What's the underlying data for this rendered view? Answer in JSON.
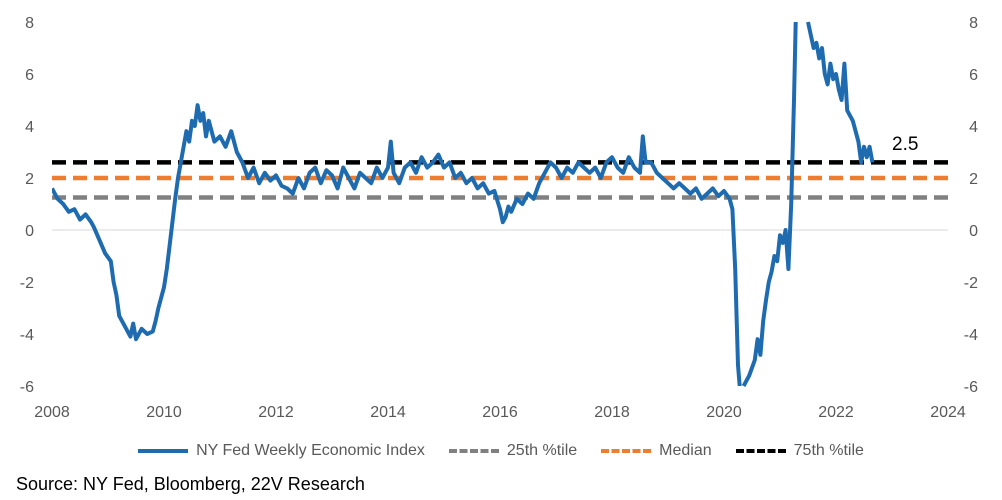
{
  "chart_data": {
    "type": "line",
    "title": "",
    "xlabel": "",
    "ylabel": "",
    "xlim": [
      2008,
      2024
    ],
    "ylim": [
      -6,
      8
    ],
    "x_ticks": [
      "2008",
      "2010",
      "2012",
      "2014",
      "2016",
      "2018",
      "2020",
      "2022",
      "2024"
    ],
    "y_ticks": [
      "-6",
      "-4",
      "-2",
      "0",
      "2",
      "4",
      "6",
      "8"
    ],
    "grid": false,
    "legend_position": "bottom",
    "annotation": "2.5",
    "series": [
      {
        "name": "NY Fed Weekly Economic Index",
        "color": "#1f6bb0",
        "style": "solid",
        "points": [
          [
            2008.0,
            1.6
          ],
          [
            2008.1,
            1.2
          ],
          [
            2008.2,
            1.0
          ],
          [
            2008.3,
            0.7
          ],
          [
            2008.4,
            0.8
          ],
          [
            2008.5,
            0.4
          ],
          [
            2008.6,
            0.6
          ],
          [
            2008.7,
            0.3
          ],
          [
            2008.75,
            0.1
          ],
          [
            2008.85,
            -0.4
          ],
          [
            2008.95,
            -0.9
          ],
          [
            2009.05,
            -1.2
          ],
          [
            2009.1,
            -2.0
          ],
          [
            2009.15,
            -2.5
          ],
          [
            2009.2,
            -3.3
          ],
          [
            2009.3,
            -3.7
          ],
          [
            2009.4,
            -4.1
          ],
          [
            2009.45,
            -3.6
          ],
          [
            2009.5,
            -4.2
          ],
          [
            2009.6,
            -3.8
          ],
          [
            2009.7,
            -4.0
          ],
          [
            2009.8,
            -3.9
          ],
          [
            2009.85,
            -3.5
          ],
          [
            2009.9,
            -3.0
          ],
          [
            2010.0,
            -2.2
          ],
          [
            2010.05,
            -1.5
          ],
          [
            2010.1,
            -0.6
          ],
          [
            2010.15,
            0.3
          ],
          [
            2010.2,
            1.2
          ],
          [
            2010.25,
            2.0
          ],
          [
            2010.3,
            2.6
          ],
          [
            2010.35,
            3.2
          ],
          [
            2010.4,
            3.8
          ],
          [
            2010.45,
            3.4
          ],
          [
            2010.5,
            4.2
          ],
          [
            2010.55,
            4.0
          ],
          [
            2010.6,
            4.8
          ],
          [
            2010.65,
            4.2
          ],
          [
            2010.7,
            4.5
          ],
          [
            2010.75,
            3.6
          ],
          [
            2010.8,
            4.2
          ],
          [
            2010.9,
            3.4
          ],
          [
            2011.0,
            3.6
          ],
          [
            2011.1,
            3.2
          ],
          [
            2011.2,
            3.8
          ],
          [
            2011.3,
            3.0
          ],
          [
            2011.4,
            2.6
          ],
          [
            2011.5,
            2.0
          ],
          [
            2011.6,
            2.4
          ],
          [
            2011.7,
            1.8
          ],
          [
            2011.8,
            2.2
          ],
          [
            2011.9,
            1.9
          ],
          [
            2012.0,
            2.1
          ],
          [
            2012.1,
            1.7
          ],
          [
            2012.2,
            1.6
          ],
          [
            2012.3,
            1.4
          ],
          [
            2012.4,
            2.0
          ],
          [
            2012.5,
            1.6
          ],
          [
            2012.6,
            2.2
          ],
          [
            2012.7,
            2.4
          ],
          [
            2012.8,
            1.8
          ],
          [
            2012.9,
            2.3
          ],
          [
            2013.0,
            2.1
          ],
          [
            2013.1,
            1.6
          ],
          [
            2013.2,
            2.4
          ],
          [
            2013.3,
            2.0
          ],
          [
            2013.4,
            1.6
          ],
          [
            2013.5,
            2.2
          ],
          [
            2013.6,
            2.0
          ],
          [
            2013.7,
            1.8
          ],
          [
            2013.8,
            2.4
          ],
          [
            2013.9,
            2.0
          ],
          [
            2014.0,
            2.4
          ],
          [
            2014.05,
            3.4
          ],
          [
            2014.1,
            2.2
          ],
          [
            2014.2,
            1.8
          ],
          [
            2014.3,
            2.4
          ],
          [
            2014.4,
            2.6
          ],
          [
            2014.5,
            2.2
          ],
          [
            2014.6,
            2.8
          ],
          [
            2014.7,
            2.4
          ],
          [
            2014.8,
            2.6
          ],
          [
            2014.9,
            2.9
          ],
          [
            2015.0,
            2.4
          ],
          [
            2015.1,
            2.6
          ],
          [
            2015.2,
            2.0
          ],
          [
            2015.3,
            2.2
          ],
          [
            2015.4,
            1.8
          ],
          [
            2015.5,
            2.0
          ],
          [
            2015.6,
            1.6
          ],
          [
            2015.7,
            1.8
          ],
          [
            2015.8,
            1.4
          ],
          [
            2015.9,
            1.5
          ],
          [
            2016.0,
            0.8
          ],
          [
            2016.05,
            0.3
          ],
          [
            2016.1,
            0.5
          ],
          [
            2016.15,
            0.9
          ],
          [
            2016.2,
            0.7
          ],
          [
            2016.3,
            1.2
          ],
          [
            2016.4,
            1.0
          ],
          [
            2016.5,
            1.4
          ],
          [
            2016.6,
            1.2
          ],
          [
            2016.7,
            1.8
          ],
          [
            2016.8,
            2.2
          ],
          [
            2016.9,
            2.6
          ],
          [
            2017.0,
            2.4
          ],
          [
            2017.1,
            2.0
          ],
          [
            2017.2,
            2.4
          ],
          [
            2017.3,
            2.2
          ],
          [
            2017.4,
            2.6
          ],
          [
            2017.5,
            2.4
          ],
          [
            2017.6,
            2.2
          ],
          [
            2017.7,
            2.4
          ],
          [
            2017.8,
            2.0
          ],
          [
            2017.9,
            2.6
          ],
          [
            2018.0,
            2.8
          ],
          [
            2018.1,
            2.4
          ],
          [
            2018.2,
            2.2
          ],
          [
            2018.3,
            2.8
          ],
          [
            2018.4,
            2.4
          ],
          [
            2018.5,
            2.2
          ],
          [
            2018.55,
            3.6
          ],
          [
            2018.6,
            2.6
          ],
          [
            2018.7,
            2.6
          ],
          [
            2018.8,
            2.2
          ],
          [
            2018.9,
            2.0
          ],
          [
            2019.0,
            1.8
          ],
          [
            2019.1,
            1.6
          ],
          [
            2019.2,
            1.8
          ],
          [
            2019.3,
            1.6
          ],
          [
            2019.4,
            1.4
          ],
          [
            2019.5,
            1.6
          ],
          [
            2019.6,
            1.2
          ],
          [
            2019.7,
            1.4
          ],
          [
            2019.8,
            1.6
          ],
          [
            2019.9,
            1.3
          ],
          [
            2020.0,
            1.5
          ],
          [
            2020.1,
            1.2
          ],
          [
            2020.15,
            0.8
          ],
          [
            2020.2,
            -1.5
          ],
          [
            2020.25,
            -5.2
          ],
          [
            2020.28,
            -6.0
          ]
        ]
      },
      {
        "name": "",
        "color": "#1f6bb0",
        "style": "solid",
        "points": [
          [
            2020.35,
            -6.0
          ],
          [
            2020.45,
            -5.6
          ],
          [
            2020.55,
            -5.0
          ],
          [
            2020.6,
            -4.2
          ],
          [
            2020.65,
            -4.8
          ],
          [
            2020.7,
            -3.5
          ],
          [
            2020.75,
            -2.7
          ],
          [
            2020.8,
            -2.0
          ],
          [
            2020.85,
            -1.6
          ],
          [
            2020.9,
            -1.0
          ],
          [
            2020.95,
            -1.2
          ],
          [
            2021.0,
            -0.2
          ],
          [
            2021.05,
            -0.5
          ],
          [
            2021.1,
            0.0
          ],
          [
            2021.15,
            -1.5
          ],
          [
            2021.2,
            1.0
          ],
          [
            2021.25,
            5.0
          ],
          [
            2021.28,
            8.0
          ]
        ]
      },
      {
        "name": "",
        "color": "#1f6bb0",
        "style": "solid",
        "points": [
          [
            2021.5,
            8.0
          ],
          [
            2021.55,
            7.5
          ],
          [
            2021.6,
            7.0
          ],
          [
            2021.65,
            7.2
          ],
          [
            2021.7,
            6.6
          ],
          [
            2021.75,
            7.0
          ],
          [
            2021.8,
            6.0
          ],
          [
            2021.85,
            5.6
          ],
          [
            2021.9,
            6.4
          ],
          [
            2021.95,
            5.8
          ],
          [
            2022.0,
            6.0
          ],
          [
            2022.05,
            5.4
          ],
          [
            2022.1,
            5.0
          ],
          [
            2022.15,
            6.4
          ],
          [
            2022.2,
            4.6
          ],
          [
            2022.3,
            4.2
          ],
          [
            2022.35,
            3.8
          ],
          [
            2022.4,
            3.4
          ],
          [
            2022.45,
            2.6
          ],
          [
            2022.5,
            3.2
          ],
          [
            2022.55,
            2.8
          ],
          [
            2022.6,
            3.2
          ],
          [
            2022.65,
            2.6
          ]
        ]
      },
      {
        "name": "25th %tile",
        "color": "#808080",
        "style": "dashed",
        "points": [
          [
            2008.0,
            1.25
          ],
          [
            2024.0,
            1.25
          ]
        ]
      },
      {
        "name": "Median",
        "color": "#ed7d31",
        "style": "dashed",
        "points": [
          [
            2008.0,
            2.0
          ],
          [
            2024.0,
            2.0
          ]
        ]
      },
      {
        "name": "75th %tile",
        "color": "#000000",
        "style": "dashed",
        "points": [
          [
            2008.0,
            2.6
          ],
          [
            2024.0,
            2.6
          ]
        ]
      }
    ]
  },
  "legend": [
    {
      "label": "NY Fed Weekly Economic Index",
      "color": "#1f6bb0",
      "style": "solid"
    },
    {
      "label": "25th %tile",
      "color": "#808080",
      "style": "dashed"
    },
    {
      "label": "Median",
      "color": "#ed7d31",
      "style": "dashed"
    },
    {
      "label": "75th %tile",
      "color": "#000000",
      "style": "dashed"
    }
  ],
  "source": "Source: NY Fed, Bloomberg, 22V Research"
}
